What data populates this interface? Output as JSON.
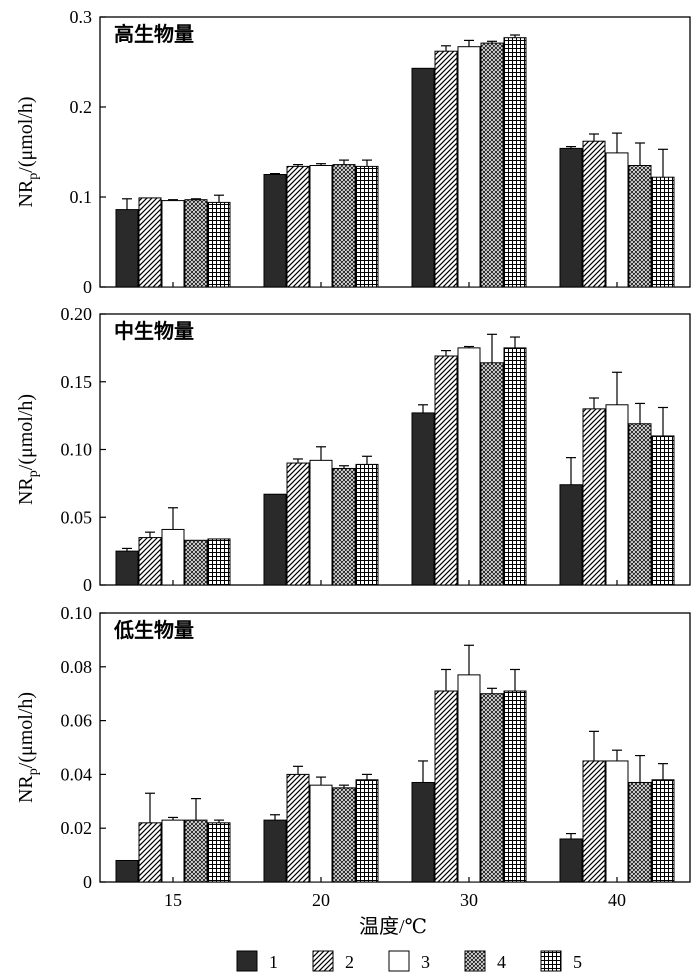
{
  "chart_data": [
    {
      "type": "bar",
      "title": "高生物量",
      "ylabel_main": "NR",
      "ylabel_sub": "p",
      "ylabel_tail": "/(μmol/h)",
      "categories": [
        "15",
        "20",
        "30",
        "40"
      ],
      "ylim": [
        0,
        0.3
      ],
      "yticks": [
        "0",
        "0.1",
        "0.2",
        "0.3"
      ],
      "ytick_values": [
        0,
        0.1,
        0.2,
        0.3
      ],
      "series": [
        {
          "name": "1",
          "values": [
            0.086,
            0.125,
            0.243,
            0.154
          ],
          "errors": [
            0.012,
            0.001,
            0.0,
            0.002
          ]
        },
        {
          "name": "2",
          "values": [
            0.099,
            0.134,
            0.262,
            0.162
          ],
          "errors": [
            0.0,
            0.002,
            0.006,
            0.008
          ]
        },
        {
          "name": "3",
          "values": [
            0.096,
            0.135,
            0.267,
            0.149
          ],
          "errors": [
            0.001,
            0.002,
            0.007,
            0.022
          ]
        },
        {
          "name": "4",
          "values": [
            0.097,
            0.136,
            0.271,
            0.135
          ],
          "errors": [
            0.001,
            0.005,
            0.002,
            0.025
          ]
        },
        {
          "name": "5",
          "values": [
            0.094,
            0.134,
            0.277,
            0.122
          ],
          "errors": [
            0.008,
            0.007,
            0.003,
            0.031
          ]
        }
      ]
    },
    {
      "type": "bar",
      "title": "中生物量",
      "ylabel_main": "NR",
      "ylabel_sub": "p",
      "ylabel_tail": "/(μmol/h)",
      "categories": [
        "15",
        "20",
        "30",
        "40"
      ],
      "ylim": [
        0,
        0.2
      ],
      "yticks": [
        "0",
        "0.05",
        "0.10",
        "0.15",
        "0.20"
      ],
      "ytick_values": [
        0,
        0.05,
        0.1,
        0.15,
        0.2
      ],
      "series": [
        {
          "name": "1",
          "values": [
            0.025,
            0.067,
            0.127,
            0.074
          ],
          "errors": [
            0.002,
            0.0,
            0.006,
            0.02
          ]
        },
        {
          "name": "2",
          "values": [
            0.035,
            0.09,
            0.169,
            0.13
          ],
          "errors": [
            0.004,
            0.003,
            0.004,
            0.008
          ]
        },
        {
          "name": "3",
          "values": [
            0.041,
            0.092,
            0.175,
            0.133
          ],
          "errors": [
            0.016,
            0.01,
            0.001,
            0.024
          ]
        },
        {
          "name": "4",
          "values": [
            0.033,
            0.086,
            0.164,
            0.119
          ],
          "errors": [
            0.0,
            0.002,
            0.021,
            0.015
          ]
        },
        {
          "name": "5",
          "values": [
            0.034,
            0.089,
            0.175,
            0.11
          ],
          "errors": [
            0.0,
            0.006,
            0.008,
            0.021
          ]
        }
      ]
    },
    {
      "type": "bar",
      "title": "低生物量",
      "ylabel_main": "NR",
      "ylabel_sub": "p",
      "ylabel_tail": "/(μmol/h)",
      "categories": [
        "15",
        "20",
        "30",
        "40"
      ],
      "ylim": [
        0,
        0.1
      ],
      "yticks": [
        "0",
        "0.02",
        "0.04",
        "0.06",
        "0.08",
        "0.10"
      ],
      "ytick_values": [
        0,
        0.02,
        0.04,
        0.06,
        0.08,
        0.1
      ],
      "series": [
        {
          "name": "1",
          "values": [
            0.008,
            0.023,
            0.037,
            0.016
          ],
          "errors": [
            0.0,
            0.002,
            0.008,
            0.002
          ]
        },
        {
          "name": "2",
          "values": [
            0.022,
            0.04,
            0.071,
            0.045
          ],
          "errors": [
            0.011,
            0.003,
            0.008,
            0.011
          ]
        },
        {
          "name": "3",
          "values": [
            0.023,
            0.036,
            0.077,
            0.045
          ],
          "errors": [
            0.001,
            0.003,
            0.011,
            0.004
          ]
        },
        {
          "name": "4",
          "values": [
            0.023,
            0.035,
            0.07,
            0.037
          ],
          "errors": [
            0.008,
            0.001,
            0.002,
            0.01
          ]
        },
        {
          "name": "5",
          "values": [
            0.022,
            0.038,
            0.071,
            0.038
          ],
          "errors": [
            0.001,
            0.002,
            0.008,
            0.006
          ]
        }
      ]
    }
  ],
  "xlabel": "温度/℃",
  "legend": [
    "1",
    "2",
    "3",
    "4",
    "5"
  ],
  "colors": {
    "series1_fill": "#2a2a2a",
    "axis": "#000000",
    "background": "#ffffff"
  }
}
